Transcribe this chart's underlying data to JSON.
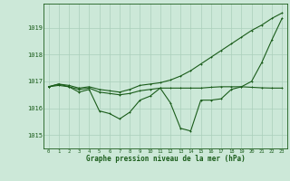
{
  "title": "Graphe pression niveau de la mer (hPa)",
  "bg_color": "#cce8d8",
  "line_color": "#1a5c1a",
  "grid_color": "#aacfba",
  "xlim": [
    -0.5,
    23.5
  ],
  "ylim": [
    1014.5,
    1019.9
  ],
  "yticks": [
    1015,
    1016,
    1017,
    1018,
    1019
  ],
  "xticks": [
    0,
    1,
    2,
    3,
    4,
    5,
    6,
    7,
    8,
    9,
    10,
    11,
    12,
    13,
    14,
    15,
    16,
    17,
    18,
    19,
    20,
    21,
    22,
    23
  ],
  "hours": [
    0,
    1,
    2,
    3,
    4,
    5,
    6,
    7,
    8,
    9,
    10,
    11,
    12,
    13,
    14,
    15,
    16,
    17,
    18,
    19,
    20,
    21,
    22,
    23
  ],
  "series1": [
    1016.8,
    1016.9,
    1016.8,
    1016.6,
    1016.7,
    1015.9,
    1015.8,
    1015.6,
    1015.85,
    1016.3,
    1016.45,
    1016.75,
    1016.2,
    1015.25,
    1015.15,
    1016.3,
    1016.3,
    1016.35,
    1016.7,
    1016.8,
    1017.0,
    1017.7,
    1018.55,
    1019.35
  ],
  "series2": [
    1016.8,
    1016.85,
    1016.8,
    1016.7,
    1016.75,
    1016.6,
    1016.55,
    1016.5,
    1016.55,
    1016.65,
    1016.7,
    1016.75,
    1016.75,
    1016.75,
    1016.75,
    1016.75,
    1016.78,
    1016.8,
    1016.8,
    1016.8,
    1016.78,
    1016.76,
    1016.75,
    1016.75
  ],
  "series3": [
    1016.8,
    1016.9,
    1016.85,
    1016.75,
    1016.8,
    1016.7,
    1016.65,
    1016.6,
    1016.7,
    1016.85,
    1016.9,
    1016.95,
    1017.05,
    1017.2,
    1017.4,
    1017.65,
    1017.9,
    1018.15,
    1018.4,
    1018.65,
    1018.9,
    1019.1,
    1019.35,
    1019.55
  ]
}
